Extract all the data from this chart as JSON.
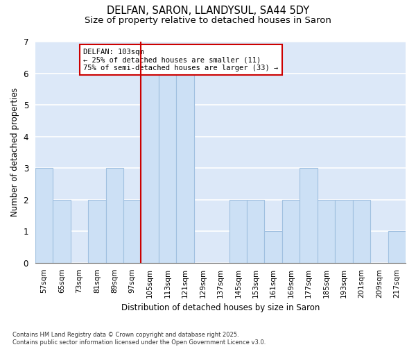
{
  "title_line1": "DELFAN, SARON, LLANDYSUL, SA44 5DY",
  "title_line2": "Size of property relative to detached houses in Saron",
  "xlabel": "Distribution of detached houses by size in Saron",
  "ylabel": "Number of detached properties",
  "footer": "Contains HM Land Registry data © Crown copyright and database right 2025.\nContains public sector information licensed under the Open Government Licence v3.0.",
  "annotation_title": "DELFAN: 103sqm",
  "annotation_line2": "← 25% of detached houses are smaller (11)",
  "annotation_line3": "75% of semi-detached houses are larger (33) →",
  "bar_color": "#cce0f5",
  "bar_edge_color": "#a0c0e0",
  "marker_line_color": "#cc0000",
  "categories": [
    "57sqm",
    "65sqm",
    "73sqm",
    "81sqm",
    "89sqm",
    "97sqm",
    "105sqm",
    "113sqm",
    "121sqm",
    "129sqm",
    "137sqm",
    "145sqm",
    "153sqm",
    "161sqm",
    "169sqm",
    "177sqm",
    "185sqm",
    "193sqm",
    "201sqm",
    "209sqm",
    "217sqm"
  ],
  "values": [
    3,
    2,
    0,
    2,
    3,
    2,
    6,
    6,
    6,
    0,
    0,
    2,
    2,
    1,
    2,
    3,
    2,
    2,
    2,
    0,
    1
  ],
  "ylim": [
    0,
    7
  ],
  "yticks": [
    0,
    1,
    2,
    3,
    4,
    5,
    6,
    7
  ],
  "fig_bg": "#ffffff",
  "plot_bg": "#dce8f8",
  "grid_color": "#ffffff"
}
